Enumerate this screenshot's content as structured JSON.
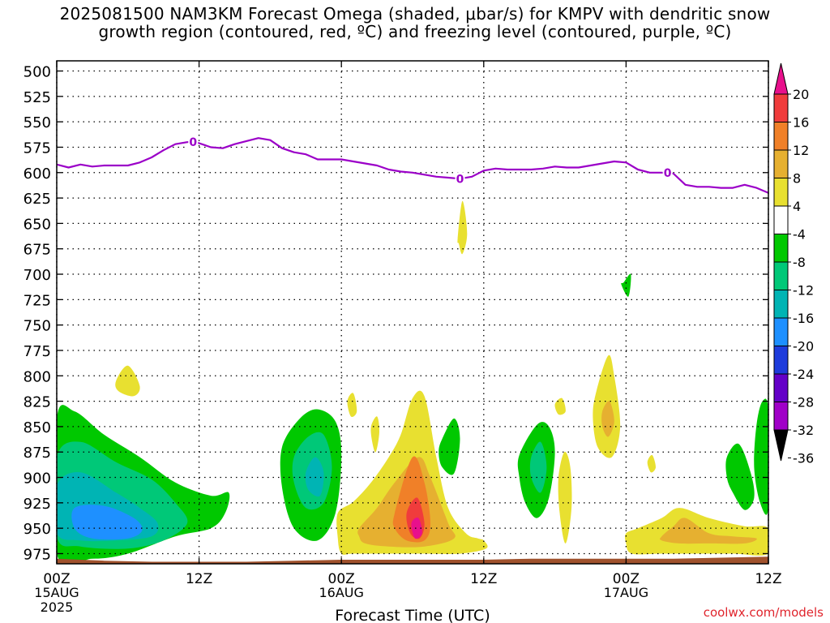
{
  "header": {
    "title_line1": "2025081500 NAM3KM Forecast Omega (shaded, μbar/s) for KMPV with dendritic snow",
    "title_line2": "growth region (contoured, red, ºC) and freezing level (contoured, purple, ºC)"
  },
  "footer": {
    "credit": "coolwx.com/models"
  },
  "colors": {
    "freezing_line": "#9b00c8",
    "ground": "#a0522d",
    "gridline": "#000000"
  },
  "chart_data": {
    "type": "heatmap",
    "xlabel": "Forecast Time (UTC)",
    "ylabel": "",
    "x_range_hours": [
      0,
      60
    ],
    "y_range_hpa": [
      490,
      985
    ],
    "y_scale": "linear-reversed",
    "grid": true,
    "x_ticks": [
      {
        "hour": 0,
        "label": "00Z",
        "sub": "15AUG",
        "sub2": "2025"
      },
      {
        "hour": 12,
        "label": "12Z",
        "sub": "",
        "sub2": ""
      },
      {
        "hour": 24,
        "label": "00Z",
        "sub": "16AUG",
        "sub2": ""
      },
      {
        "hour": 36,
        "label": "12Z",
        "sub": "",
        "sub2": ""
      },
      {
        "hour": 48,
        "label": "00Z",
        "sub": "17AUG",
        "sub2": ""
      },
      {
        "hour": 60,
        "label": "12Z",
        "sub": "",
        "sub2": ""
      }
    ],
    "y_ticks": [
      500,
      525,
      550,
      575,
      600,
      625,
      650,
      675,
      700,
      725,
      750,
      775,
      800,
      825,
      850,
      875,
      900,
      925,
      950,
      975
    ],
    "colorbar": {
      "labels": [
        "20",
        "16",
        "12",
        "8",
        "4",
        "-4",
        "-8",
        "-12",
        "-16",
        "-20",
        "-24",
        "-28",
        "-32",
        "-36"
      ],
      "bands": [
        {
          "min": 20,
          "max": 24,
          "color": "#e8108c"
        },
        {
          "min": 16,
          "max": 20,
          "color": "#f03c3c"
        },
        {
          "min": 12,
          "max": 16,
          "color": "#f08028"
        },
        {
          "min": 8,
          "max": 12,
          "color": "#e6b030"
        },
        {
          "min": 4,
          "max": 8,
          "color": "#e8e030"
        },
        {
          "min": -4,
          "max": 4,
          "color": "#ffffff"
        },
        {
          "min": -8,
          "max": -4,
          "color": "#00c800"
        },
        {
          "min": -12,
          "max": -8,
          "color": "#00c878"
        },
        {
          "min": -16,
          "max": -12,
          "color": "#00b4b4"
        },
        {
          "min": -20,
          "max": -16,
          "color": "#1e90ff"
        },
        {
          "min": -24,
          "max": -20,
          "color": "#1e3cdc"
        },
        {
          "min": -28,
          "max": -24,
          "color": "#6400c8"
        },
        {
          "min": -32,
          "max": -28,
          "color": "#a000c8"
        },
        {
          "min": -36,
          "max": -32,
          "color": "#a0a0a0"
        }
      ]
    },
    "freezing_level": {
      "contour_value": "0",
      "label_hours": [
        11.5,
        34.0,
        51.5
      ],
      "hours": [
        0,
        1,
        2,
        3,
        4,
        5,
        6,
        7,
        8,
        9,
        10,
        11,
        11.5,
        12,
        13,
        14,
        15,
        16,
        17,
        18,
        19,
        20,
        21,
        22,
        23,
        24,
        25,
        26,
        27,
        28,
        29,
        30,
        31,
        32,
        33,
        34,
        35,
        36,
        37,
        38,
        39,
        40,
        41,
        42,
        43,
        44,
        45,
        46,
        47,
        48,
        49,
        50,
        51,
        52,
        53,
        54,
        55,
        56,
        57,
        58,
        59,
        60
      ],
      "pressure": [
        592,
        595,
        592,
        594,
        593,
        593,
        593,
        590,
        585,
        578,
        572,
        570,
        570,
        571,
        575,
        576,
        572,
        569,
        566,
        568,
        576,
        580,
        582,
        587,
        587,
        587,
        589,
        591,
        593,
        597,
        599,
        600,
        602,
        604,
        605,
        606,
        604,
        598,
        596,
        597,
        597,
        597,
        596,
        594,
        595,
        595,
        593,
        591,
        589,
        590,
        597,
        600,
        600,
        601,
        612,
        614,
        614,
        615,
        615,
        612,
        615,
        620
      ]
    },
    "omega_regions": [
      {
        "value": -6,
        "hours": [
          0,
          1.5,
          4,
          7,
          10,
          13,
          14.5,
          14.2,
          13,
          10,
          6,
          3,
          0
        ],
        "pressure": [
          842,
          835,
          858,
          880,
          905,
          918,
          915,
          935,
          950,
          958,
          975,
          980,
          975
        ]
      },
      {
        "value": -10,
        "hours": [
          0,
          2,
          5,
          8,
          10,
          11,
          9,
          6,
          2,
          0
        ],
        "pressure": [
          880,
          865,
          885,
          902,
          925,
          945,
          962,
          970,
          968,
          958
        ]
      },
      {
        "value": -14,
        "hours": [
          0,
          2,
          5,
          7,
          8.5,
          8,
          5,
          2,
          0
        ],
        "pressure": [
          908,
          895,
          915,
          930,
          945,
          958,
          962,
          962,
          955
        ]
      },
      {
        "value": -18,
        "hours": [
          1.5,
          4,
          6.5,
          7.2,
          6,
          3,
          1.5
        ],
        "pressure": [
          930,
          928,
          940,
          952,
          960,
          960,
          950
        ]
      },
      {
        "value": -6,
        "hours": [
          19,
          20.5,
          22,
          23.5,
          24,
          23.5,
          22,
          20,
          19
        ],
        "pressure": [
          870,
          842,
          833,
          845,
          878,
          935,
          962,
          950,
          910
        ]
      },
      {
        "value": -10,
        "hours": [
          20,
          21.2,
          22.5,
          23.2,
          22.5,
          21,
          20
        ],
        "pressure": [
          880,
          860,
          858,
          890,
          925,
          930,
          905
        ]
      },
      {
        "value": -14,
        "hours": [
          21,
          21.8,
          22.5,
          22.2,
          21.2
        ],
        "pressure": [
          895,
          880,
          895,
          918,
          912
        ]
      },
      {
        "value": -6,
        "hours": [
          32.5,
          33.5,
          34,
          33.5,
          32.5,
          32.2
        ],
        "pressure": [
          862,
          842,
          862,
          896,
          890,
          875
        ]
      },
      {
        "value": -6,
        "hours": [
          39,
          40.5,
          41.5,
          42,
          41.5,
          40.5,
          39.5,
          39
        ],
        "pressure": [
          878,
          848,
          850,
          875,
          920,
          940,
          925,
          900
        ]
      },
      {
        "value": -10,
        "hours": [
          40,
          40.8,
          41.3,
          40.8,
          40
        ],
        "pressure": [
          880,
          865,
          890,
          915,
          900
        ]
      },
      {
        "value": -6,
        "hours": [
          47.8,
          48.4,
          48.2,
          47.6
        ],
        "pressure": [
          708,
          700,
          722,
          710
        ]
      },
      {
        "value": -6,
        "hours": [
          56.5,
          57.5,
          58.5,
          58.8,
          58,
          57,
          56.5
        ],
        "pressure": [
          880,
          867,
          895,
          920,
          932,
          915,
          900
        ]
      },
      {
        "value": -6,
        "hours": [
          59,
          59.5,
          60,
          60,
          59.3,
          58.8
        ],
        "pressure": [
          848,
          825,
          835,
          930,
          925,
          890
        ]
      }
    ],
    "positive_regions": [
      {
        "value": 6,
        "hours": [
          5,
          6,
          7,
          6.5,
          5.2
        ],
        "pressure": [
          805,
          790,
          810,
          820,
          815
        ]
      },
      {
        "value": 6,
        "hours": [
          0,
          60,
          60,
          0
        ],
        "pressure": [
          985,
          985,
          985,
          985
        ]
      },
      {
        "value": 6,
        "hours": [
          23.7,
          25,
          26.5,
          28,
          29,
          30,
          31,
          32,
          33,
          34.5,
          35.5,
          36,
          36.2,
          34,
          31,
          28,
          25,
          24,
          23.7
        ],
        "pressure": [
          935,
          924,
          905,
          880,
          858,
          822,
          820,
          880,
          930,
          955,
          960,
          962,
          970,
          975,
          975,
          975,
          975,
          975,
          960
        ]
      },
      {
        "value": 10,
        "hours": [
          25.5,
          27,
          28.5,
          30.5,
          31.5,
          33,
          33.5,
          31,
          28,
          26,
          25.5
        ],
        "pressure": [
          950,
          930,
          905,
          880,
          900,
          945,
          960,
          968,
          968,
          965,
          958
        ]
      },
      {
        "value": 14,
        "hours": [
          28.5,
          30,
          31,
          31.5,
          31,
          29.5,
          28.5
        ],
        "pressure": [
          935,
          880,
          905,
          945,
          962,
          962,
          950
        ]
      },
      {
        "value": 18,
        "hours": [
          29.5,
          30.4,
          31,
          30.6,
          29.8
        ],
        "pressure": [
          935,
          920,
          945,
          960,
          955
        ]
      },
      {
        "value": 22,
        "hours": [
          29.9,
          30.5,
          30.8,
          30.2
        ],
        "pressure": [
          945,
          940,
          955,
          960
        ]
      },
      {
        "value": 6,
        "hours": [
          24.5,
          25,
          25.3,
          24.8
        ],
        "pressure": [
          825,
          817,
          835,
          840
        ]
      },
      {
        "value": 6,
        "hours": [
          26.5,
          27,
          27.2,
          26.9,
          26.6
        ],
        "pressure": [
          850,
          840,
          855,
          875,
          865
        ]
      },
      {
        "value": 6,
        "hours": [
          33.8,
          34.2,
          34.6,
          34.2,
          33.9
        ],
        "pressure": [
          665,
          628,
          660,
          680,
          670
        ]
      },
      {
        "value": 6,
        "hours": [
          42.3,
          42.8,
          43.3,
          43.4,
          42.9,
          42.4
        ],
        "pressure": [
          900,
          875,
          890,
          930,
          965,
          935
        ]
      },
      {
        "value": 6,
        "hours": [
          45.5,
          46.5,
          47,
          47.5,
          46.8,
          45.6,
          45.2
        ],
        "pressure": [
          815,
          780,
          800,
          850,
          880,
          870,
          840
        ]
      },
      {
        "value": 10,
        "hours": [
          46,
          46.6,
          47,
          46.5,
          46
        ],
        "pressure": [
          835,
          825,
          845,
          860,
          850
        ]
      },
      {
        "value": 6,
        "hours": [
          42,
          42.6,
          42.9,
          42.3
        ],
        "pressure": [
          828,
          822,
          835,
          838
        ]
      },
      {
        "value": 6,
        "hours": [
          49.8,
          50.2,
          50.5,
          50.1
        ],
        "pressure": [
          885,
          878,
          890,
          895
        ]
      },
      {
        "value": 6,
        "hours": [
          48,
          49,
          51,
          52.5,
          55,
          58,
          60,
          60,
          57,
          54,
          51,
          48.5,
          48
        ],
        "pressure": [
          955,
          950,
          940,
          930,
          940,
          948,
          950,
          975,
          975,
          975,
          975,
          975,
          965
        ]
      },
      {
        "value": 10,
        "hours": [
          51,
          52,
          53,
          55,
          57,
          59,
          58,
          55,
          52.5,
          51
        ],
        "pressure": [
          958,
          948,
          940,
          955,
          958,
          960,
          965,
          965,
          965,
          962
        ]
      }
    ],
    "ground_profile": {
      "hours": [
        0,
        4,
        8,
        12,
        16,
        20,
        24,
        28,
        32,
        36,
        40,
        44,
        48,
        52,
        56,
        60
      ],
      "pressure": [
        980,
        982,
        983,
        983,
        983,
        982,
        981,
        981,
        981,
        981,
        980,
        980,
        980,
        980,
        979,
        978
      ]
    }
  }
}
